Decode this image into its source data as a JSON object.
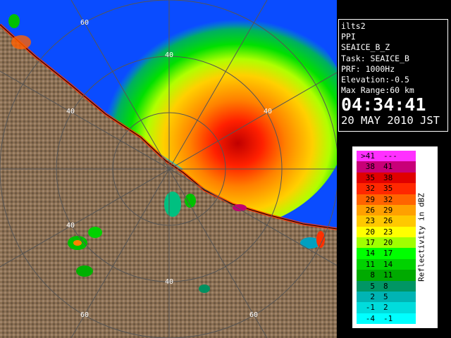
{
  "info": {
    "lines": [
      "ilts2",
      "PPI",
      "SEAICE_B_Z",
      "Task: SEAICE_B",
      "PRF: 1000Hz",
      "Elevation:-0.5",
      "Max Range:60 km"
    ],
    "time": "04:34:41",
    "date": "20 MAY 2010 JST"
  },
  "range_labels": [
    "60",
    "40",
    "40",
    "40",
    "40",
    "40",
    "60",
    "60"
  ],
  "legend": {
    "title": "Reflectivity in dBZ",
    "rows": [
      {
        "left": ">41",
        "right": "---",
        "color": "#ff30ff"
      },
      {
        "left": "38",
        "right": "41",
        "color": "#c80078"
      },
      {
        "left": "35",
        "right": "38",
        "color": "#e00000"
      },
      {
        "left": "32",
        "right": "35",
        "color": "#ff2800"
      },
      {
        "left": "29",
        "right": "32",
        "color": "#ff6400"
      },
      {
        "left": "26",
        "right": "29",
        "color": "#ffa000"
      },
      {
        "left": "23",
        "right": "26",
        "color": "#ffc800"
      },
      {
        "left": "20",
        "right": "23",
        "color": "#ffff00"
      },
      {
        "left": "17",
        "right": "20",
        "color": "#a0ff00"
      },
      {
        "left": "14",
        "right": "17",
        "color": "#00ff00"
      },
      {
        "left": "11",
        "right": "14",
        "color": "#00d200"
      },
      {
        "left": "8",
        "right": "11",
        "color": "#00aa00"
      },
      {
        "left": "5",
        "right": "8",
        "color": "#009664"
      },
      {
        "left": "2",
        "right": "5",
        "color": "#00b4b4"
      },
      {
        "left": "-1",
        "right": "2",
        "color": "#00dcdc"
      },
      {
        "left": "-4",
        "right": "-1",
        "color": "#00ffff"
      }
    ]
  }
}
